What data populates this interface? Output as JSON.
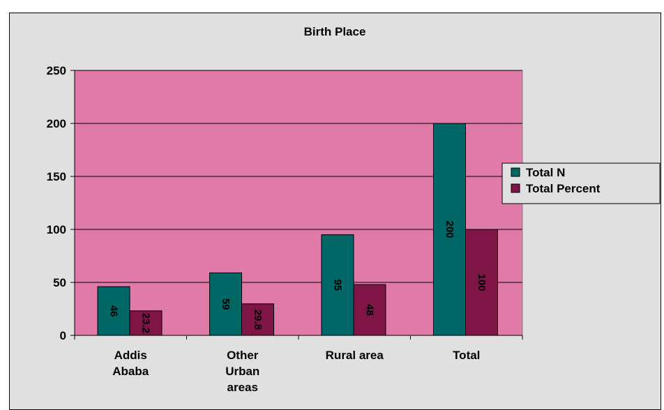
{
  "chart_data": {
    "type": "bar",
    "title": "Birth Place",
    "categories": [
      [
        "Addis",
        "Ababa"
      ],
      [
        "Other",
        "Urban",
        "areas"
      ],
      [
        "Rural area"
      ],
      [
        "Total"
      ]
    ],
    "series": [
      {
        "name": "Total N",
        "values": [
          46,
          59,
          95,
          200
        ],
        "labels": [
          "46",
          "59",
          "95",
          "200"
        ],
        "color": "#006666"
      },
      {
        "name": "Total Percent",
        "values": [
          23.2,
          29.8,
          48,
          100
        ],
        "labels": [
          "23.2",
          "29.8",
          "48",
          "100"
        ],
        "color": "#7f1447"
      }
    ],
    "ylim": [
      0,
      250
    ],
    "yticks": [
      0,
      50,
      100,
      150,
      200,
      250
    ],
    "grid": true,
    "legend_position": "right",
    "plot_background": "#e07ba9"
  }
}
